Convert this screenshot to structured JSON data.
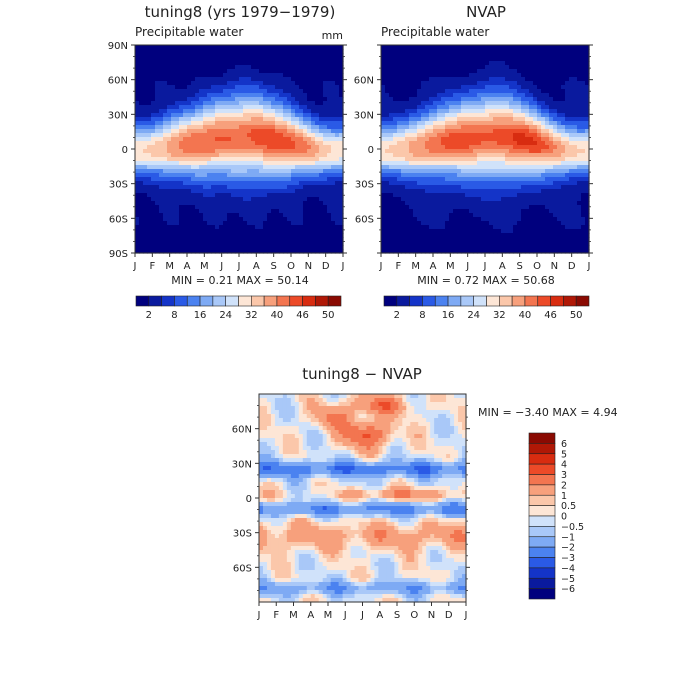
{
  "months": [
    "J",
    "F",
    "M",
    "A",
    "M",
    "J",
    "J",
    "A",
    "S",
    "O",
    "N",
    "D",
    "J"
  ],
  "panels": [
    {
      "id": "model",
      "title": "tuning8 (yrs 1979−1979)",
      "subtitle": "Precipitable water",
      "units": "mm",
      "stats": "MIN =    0.21  MAX =    50.14",
      "ylabels": [
        "90N",
        "60N",
        "30N",
        "0",
        "30S",
        "60S",
        "90S"
      ]
    },
    {
      "id": "obs",
      "title": "NVAP",
      "subtitle": "Precipitable water",
      "units": "",
      "stats": "MIN =    0.72  MAX =    50.68",
      "ylabels": [
        "",
        "60N",
        "30N",
        "0",
        "30S",
        "60S",
        ""
      ]
    }
  ],
  "colorbar_top": {
    "labels": [
      "2",
      "8",
      "16",
      "24",
      "32",
      "40",
      "46",
      "50"
    ],
    "colors": [
      "#00007e",
      "#0a1a9e",
      "#1434c8",
      "#2a5ae6",
      "#4b82f0",
      "#7eaaf4",
      "#a9c8f8",
      "#d0e2fa",
      "#fde6d6",
      "#fbc7aa",
      "#f7a07c",
      "#f37550",
      "#ec4a28",
      "#d82c10",
      "#b01806",
      "#8a0a02"
    ]
  },
  "diff_panel": {
    "title": "tuning8 − NVAP",
    "stats": "MIN =  −3.40  MAX =    4.94",
    "ylabels": [
      "60N",
      "30N",
      "0",
      "30S",
      "60S"
    ],
    "colorbar_labels": [
      "6",
      "5",
      "4",
      "3",
      "2",
      "1",
      "0.5",
      "0",
      "−0.5",
      "−1",
      "−2",
      "−3",
      "−4",
      "−5",
      "−6"
    ],
    "colorbar_colors": [
      "#8a0a02",
      "#b01806",
      "#d82c10",
      "#ec4a28",
      "#f37550",
      "#f7a07c",
      "#fbc7aa",
      "#fde6d6",
      "#d0e2fa",
      "#a9c8f8",
      "#7eaaf4",
      "#4b82f0",
      "#2a5ae6",
      "#1434c8",
      "#0a1a9e",
      "#00007e"
    ]
  },
  "chart_data": [
    {
      "type": "heatmap",
      "title": "tuning8 (yrs 1979−1979)",
      "subtitle": "Precipitable water",
      "units": "mm",
      "x": [
        "J",
        "F",
        "M",
        "A",
        "M",
        "J",
        "J",
        "A",
        "S",
        "O",
        "N",
        "D",
        "J"
      ],
      "y": [
        "90S",
        "60S",
        "30S",
        "0",
        "30N",
        "60N",
        "90N"
      ],
      "ylim": [
        -90,
        90
      ],
      "min": 0.21,
      "max": 50.14,
      "contour_levels": [
        2,
        8,
        16,
        24,
        32,
        40,
        46,
        50
      ]
    },
    {
      "type": "heatmap",
      "title": "NVAP",
      "subtitle": "Precipitable water",
      "x": [
        "J",
        "F",
        "M",
        "A",
        "M",
        "J",
        "J",
        "A",
        "S",
        "O",
        "N",
        "D",
        "J"
      ],
      "y": [
        "90S",
        "60S",
        "30S",
        "0",
        "30N",
        "60N",
        "90N"
      ],
      "ylim": [
        -90,
        90
      ],
      "min": 0.72,
      "max": 50.68,
      "contour_levels": [
        2,
        8,
        16,
        24,
        32,
        40,
        46,
        50
      ]
    },
    {
      "type": "heatmap",
      "title": "tuning8 − NVAP",
      "x": [
        "J",
        "F",
        "M",
        "A",
        "M",
        "J",
        "J",
        "A",
        "S",
        "O",
        "N",
        "D",
        "J"
      ],
      "y": [
        "60S",
        "30S",
        "0",
        "30N",
        "60N"
      ],
      "min": -3.4,
      "max": 4.94,
      "contour_levels": [
        -6,
        -5,
        -4,
        -3,
        -2,
        -1,
        -0.5,
        0,
        0.5,
        1,
        2,
        3,
        4,
        5,
        6
      ]
    }
  ]
}
